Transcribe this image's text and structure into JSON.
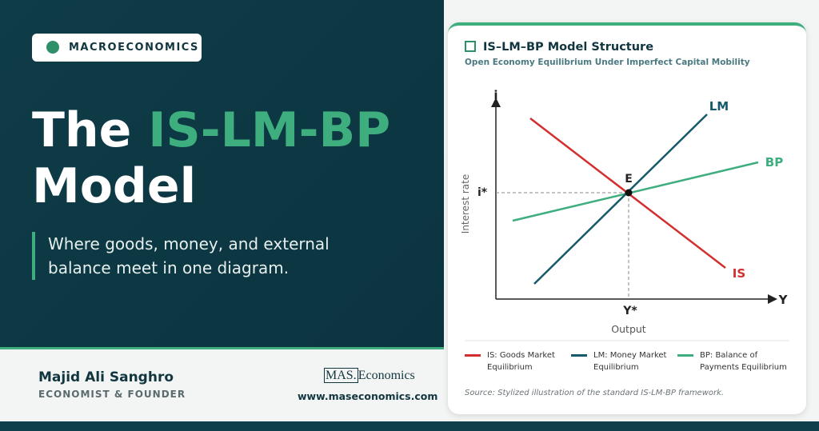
{
  "badge": "MACROECONOMICS",
  "hero": {
    "title": [
      "The",
      "IS-LM-BP",
      "Model"
    ],
    "tagline": "Where goods, money, and external balance meet in one diagram."
  },
  "footer": {
    "author": "Majid Ali Sanghro",
    "role": "ECONOMIST & FOUNDER",
    "logo": {
      "mark": "MAS.",
      "name": "Economics"
    },
    "website": "www.maseconomics.com"
  },
  "card": {
    "title": "IS–LM–BP Model Structure",
    "subtitle": "Open Economy Equilibrium Under Imperfect Capital Mobility",
    "diagram": {
      "y_axis": "i",
      "x_axis": "Y",
      "y_label": "Interest rate",
      "x_label": "Output",
      "curves": [
        "LM",
        "BP",
        "IS"
      ],
      "equilibrium": "E",
      "i_star": "i*",
      "y_star": "Y*"
    },
    "legend": [
      "IS: Goods Market Equilibrium",
      "LM: Money Market Equilibrium",
      "BP: Balance of Payments Equilibrium"
    ],
    "source": "Source: Stylized illustration of the standard IS-LM-BP framework."
  }
}
